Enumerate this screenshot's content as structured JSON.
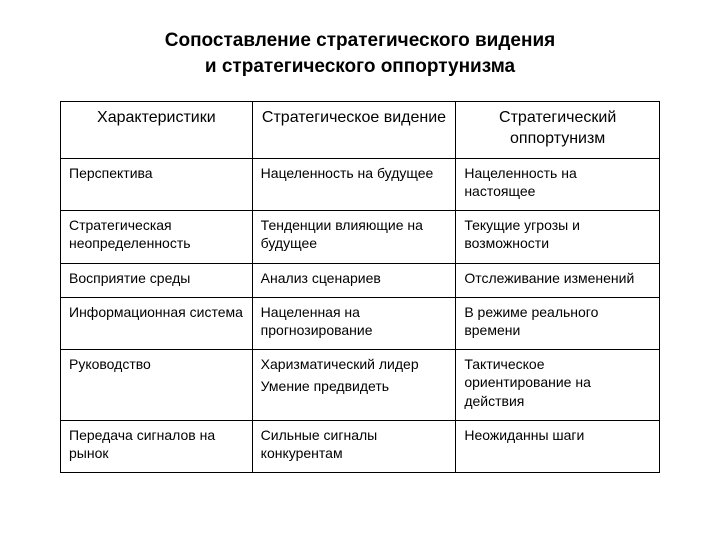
{
  "title": {
    "line1": "Сопоставление стратегического видения",
    "line2": "и стратегического оппортунизма"
  },
  "table": {
    "type": "table",
    "border_color": "#000000",
    "background_color": "#ffffff",
    "header_fontsize": 16,
    "body_fontsize": 14,
    "columns": [
      {
        "key": "char",
        "label": "Характеристики",
        "align": "center"
      },
      {
        "key": "vision",
        "label": "Стратегическое видение",
        "align": "center"
      },
      {
        "key": "opp",
        "label": "Стратегический оппортунизм",
        "align": "center"
      }
    ],
    "rows": [
      {
        "char": [
          "Перспектива"
        ],
        "vision": [
          "Нацеленность на будущее"
        ],
        "opp": [
          "Нацеленность на настоящее"
        ]
      },
      {
        "char": [
          "Стратегическая неопределенность"
        ],
        "vision": [
          "Тенденции влияющие на будущее"
        ],
        "opp": [
          "Текущие угрозы и возможности"
        ]
      },
      {
        "char": [
          "Восприятие среды"
        ],
        "vision": [
          "Анализ сценариев"
        ],
        "opp": [
          "Отслеживание изменений"
        ]
      },
      {
        "char": [
          "Информационная система"
        ],
        "vision": [
          "Нацеленная на прогнозирование"
        ],
        "opp": [
          "В режиме реального времени"
        ]
      },
      {
        "char": [
          "Руководство"
        ],
        "vision": [
          "Харизматический лидер",
          "Умение предвидеть"
        ],
        "opp": [
          "Тактическое ориентирование на действия"
        ]
      },
      {
        "char": [
          "Передача сигналов на рынок"
        ],
        "vision": [
          "Сильные сигналы конкурентам"
        ],
        "opp": [
          "Неожиданны шаги"
        ]
      }
    ]
  }
}
